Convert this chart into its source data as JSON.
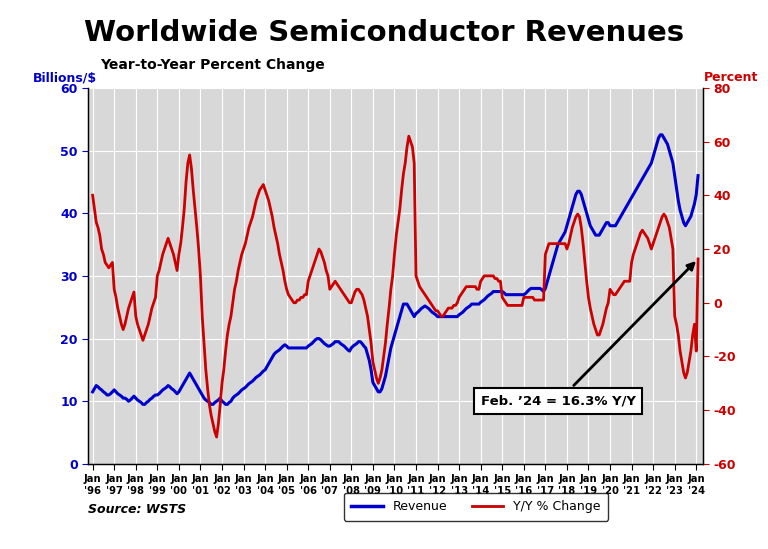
{
  "title": "Worldwide Semiconductor Revenues",
  "subtitle": "Year-to-Year Percent Change",
  "ylabel_left": "Billions/$",
  "ylabel_right": "Percent",
  "source": "Source: WSTS",
  "annotation": "Feb. ’24 = 16.3% Y/Y",
  "left_color": "#0000CC",
  "right_color": "#CC0000",
  "title_fontsize": 21,
  "subtitle_fontsize": 10,
  "ylim_left": [
    0,
    60
  ],
  "ylim_right": [
    -60,
    80
  ],
  "yticks_left": [
    0,
    10,
    20,
    30,
    40,
    50,
    60
  ],
  "yticks_right": [
    -60,
    -40,
    -20,
    0,
    20,
    40,
    60,
    80
  ],
  "years": [
    "'96",
    "'97",
    "'98",
    "'99",
    "'00",
    "'01",
    "'02",
    "'03",
    "'04",
    "'05",
    "'06",
    "'07",
    "'08",
    "'09",
    "'10",
    "'11",
    "'12",
    "'13",
    "'14",
    "'15",
    "'16",
    "'17",
    "'18",
    "'19",
    "'20",
    "'21",
    "'22",
    "'23",
    "'24"
  ],
  "bg_color": "#D8D8D8",
  "plot_bg": "#D8D8D8",
  "grid_color": "#BBBBBB",
  "rev_detail": [
    11.5,
    12.0,
    12.5,
    12.3,
    12.0,
    11.8,
    11.5,
    11.3,
    11.0,
    11.0,
    11.2,
    11.5,
    11.8,
    11.5,
    11.2,
    11.0,
    10.8,
    10.5,
    10.5,
    10.3,
    10.0,
    10.2,
    10.5,
    10.8,
    10.5,
    10.2,
    10.0,
    9.8,
    9.5,
    9.5,
    9.8,
    10.0,
    10.3,
    10.5,
    10.8,
    11.0,
    11.0,
    11.2,
    11.5,
    11.8,
    12.0,
    12.2,
    12.5,
    12.3,
    12.0,
    11.8,
    11.5,
    11.2,
    11.5,
    12.0,
    12.5,
    13.0,
    13.5,
    14.0,
    14.5,
    14.0,
    13.5,
    13.0,
    12.5,
    12.0,
    11.5,
    11.0,
    10.5,
    10.2,
    10.0,
    9.8,
    9.5,
    9.5,
    9.8,
    10.0,
    10.2,
    10.5,
    10.0,
    9.8,
    9.5,
    9.5,
    9.8,
    10.0,
    10.5,
    10.8,
    11.0,
    11.2,
    11.5,
    11.8,
    12.0,
    12.2,
    12.5,
    12.8,
    13.0,
    13.2,
    13.5,
    13.8,
    14.0,
    14.2,
    14.5,
    14.8,
    15.0,
    15.5,
    16.0,
    16.5,
    17.0,
    17.5,
    17.8,
    18.0,
    18.2,
    18.5,
    18.8,
    19.0,
    18.8,
    18.5,
    18.5,
    18.5,
    18.5,
    18.5,
    18.5,
    18.5,
    18.5,
    18.5,
    18.5,
    18.5,
    18.8,
    19.0,
    19.2,
    19.5,
    19.8,
    20.0,
    20.0,
    19.8,
    19.5,
    19.2,
    19.0,
    18.8,
    18.8,
    19.0,
    19.2,
    19.5,
    19.5,
    19.5,
    19.2,
    19.0,
    18.8,
    18.5,
    18.2,
    18.0,
    18.5,
    18.8,
    19.0,
    19.2,
    19.5,
    19.5,
    19.2,
    18.8,
    18.5,
    17.5,
    16.5,
    15.0,
    13.0,
    12.5,
    12.0,
    11.5,
    11.5,
    12.0,
    13.0,
    14.0,
    15.5,
    17.0,
    18.5,
    19.5,
    20.5,
    21.5,
    22.5,
    23.5,
    24.5,
    25.5,
    25.5,
    25.5,
    25.0,
    24.5,
    24.0,
    23.5,
    24.0,
    24.2,
    24.5,
    24.8,
    25.0,
    25.2,
    25.0,
    24.8,
    24.5,
    24.2,
    24.0,
    23.8,
    23.5,
    23.5,
    23.5,
    23.5,
    23.5,
    23.5,
    23.5,
    23.5,
    23.5,
    23.5,
    23.5,
    23.5,
    23.8,
    24.0,
    24.2,
    24.5,
    24.8,
    25.0,
    25.2,
    25.5,
    25.5,
    25.5,
    25.5,
    25.5,
    25.8,
    26.0,
    26.2,
    26.5,
    26.8,
    27.0,
    27.2,
    27.5,
    27.5,
    27.5,
    27.5,
    27.5,
    27.5,
    27.3,
    27.0,
    27.0,
    27.0,
    27.0,
    27.0,
    27.0,
    27.0,
    27.0,
    27.0,
    27.0,
    27.0,
    27.2,
    27.5,
    27.8,
    28.0,
    28.0,
    28.0,
    28.0,
    28.0,
    28.0,
    27.8,
    27.5,
    28.0,
    29.0,
    30.0,
    31.0,
    32.0,
    33.0,
    34.0,
    35.0,
    35.5,
    36.0,
    36.5,
    37.0,
    38.0,
    39.0,
    40.0,
    41.0,
    42.0,
    43.0,
    43.5,
    43.5,
    43.0,
    42.0,
    41.0,
    40.0,
    39.0,
    38.0,
    37.5,
    37.0,
    36.5,
    36.5,
    36.5,
    37.0,
    37.5,
    38.0,
    38.5,
    38.5,
    38.0,
    38.0,
    38.0,
    38.0,
    38.5,
    39.0,
    39.5,
    40.0,
    40.5,
    41.0,
    41.5,
    42.0,
    42.5,
    43.0,
    43.5,
    44.0,
    44.5,
    45.0,
    45.5,
    46.0,
    46.5,
    47.0,
    47.5,
    48.0,
    49.0,
    50.0,
    51.0,
    52.0,
    52.5,
    52.5,
    52.0,
    51.5,
    51.0,
    50.0,
    49.0,
    48.0,
    46.0,
    44.0,
    42.0,
    40.5,
    39.5,
    38.5,
    38.0,
    38.5,
    39.0,
    39.5,
    40.5,
    41.5,
    43.0,
    46.0
  ],
  "yoy_detail": [
    40,
    35,
    30,
    28,
    25,
    20,
    18,
    15,
    14,
    13,
    14,
    15,
    5,
    2,
    -2,
    -5,
    -8,
    -10,
    -8,
    -5,
    -2,
    0,
    2,
    4,
    -5,
    -8,
    -10,
    -12,
    -14,
    -12,
    -10,
    -8,
    -5,
    -2,
    0,
    2,
    10,
    12,
    15,
    18,
    20,
    22,
    24,
    22,
    20,
    18,
    15,
    12,
    18,
    22,
    28,
    35,
    45,
    52,
    55,
    50,
    42,
    35,
    28,
    20,
    10,
    -5,
    -15,
    -25,
    -32,
    -38,
    -42,
    -45,
    -48,
    -50,
    -45,
    -38,
    -30,
    -25,
    -18,
    -12,
    -8,
    -5,
    0,
    5,
    8,
    12,
    15,
    18,
    20,
    22,
    25,
    28,
    30,
    32,
    35,
    38,
    40,
    42,
    43,
    44,
    42,
    40,
    38,
    35,
    32,
    28,
    25,
    22,
    18,
    15,
    12,
    8,
    5,
    3,
    2,
    1,
    0,
    0,
    1,
    1,
    2,
    2,
    3,
    3,
    8,
    10,
    12,
    14,
    16,
    18,
    20,
    19,
    17,
    15,
    12,
    10,
    5,
    6,
    7,
    8,
    7,
    6,
    5,
    4,
    3,
    2,
    1,
    0,
    0,
    2,
    4,
    5,
    5,
    4,
    3,
    1,
    -2,
    -5,
    -10,
    -15,
    -22,
    -25,
    -28,
    -30,
    -28,
    -25,
    -20,
    -15,
    -8,
    -2,
    5,
    10,
    18,
    25,
    30,
    35,
    42,
    48,
    52,
    58,
    62,
    60,
    58,
    52,
    10,
    8,
    6,
    5,
    4,
    3,
    2,
    1,
    0,
    -1,
    -2,
    -3,
    -3,
    -4,
    -5,
    -5,
    -4,
    -3,
    -2,
    -2,
    -2,
    -1,
    -1,
    0,
    2,
    3,
    4,
    5,
    6,
    6,
    6,
    6,
    6,
    6,
    5,
    5,
    8,
    9,
    10,
    10,
    10,
    10,
    10,
    10,
    9,
    9,
    8,
    8,
    2,
    1,
    0,
    -1,
    -1,
    -1,
    -1,
    -1,
    -1,
    -1,
    -1,
    -1,
    2,
    2,
    2,
    2,
    2,
    2,
    1,
    1,
    1,
    1,
    1,
    1,
    18,
    20,
    22,
    22,
    22,
    22,
    22,
    22,
    22,
    22,
    22,
    22,
    20,
    22,
    25,
    28,
    30,
    32,
    33,
    32,
    28,
    22,
    15,
    8,
    2,
    -2,
    -5,
    -8,
    -10,
    -12,
    -12,
    -10,
    -8,
    -5,
    -2,
    0,
    5,
    4,
    3,
    3,
    4,
    5,
    6,
    7,
    8,
    8,
    8,
    8,
    15,
    18,
    20,
    22,
    24,
    26,
    27,
    26,
    25,
    24,
    22,
    20,
    22,
    24,
    26,
    28,
    30,
    32,
    33,
    32,
    30,
    28,
    24,
    20,
    -5,
    -8,
    -12,
    -18,
    -22,
    -26,
    -28,
    -26,
    -22,
    -18,
    -12,
    -8,
    -18,
    16.3
  ]
}
